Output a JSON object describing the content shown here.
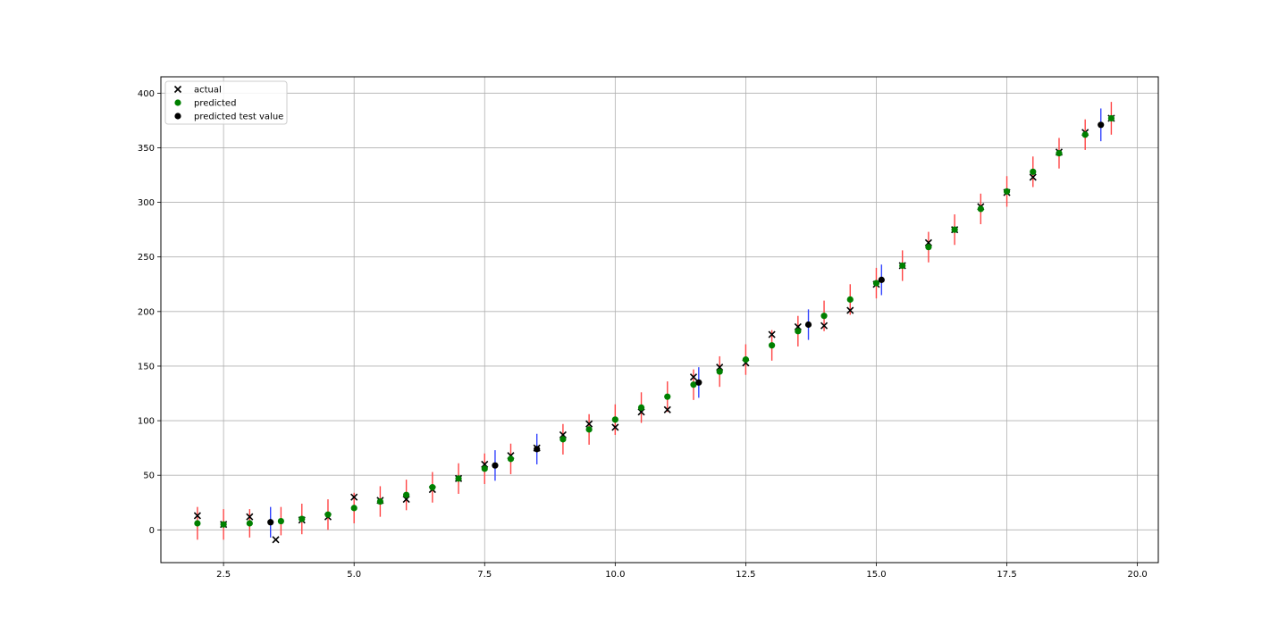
{
  "chart_data": {
    "type": "scatter",
    "title": "",
    "xlabel": "",
    "ylabel": "",
    "xlim": [
      1.3,
      20.4
    ],
    "ylim": [
      -30,
      415
    ],
    "x_ticks": [
      2.5,
      5.0,
      7.5,
      10.0,
      12.5,
      15.0,
      17.5,
      20.0
    ],
    "x_tick_labels": [
      "2.5",
      "5.0",
      "7.5",
      "10.0",
      "12.5",
      "15.0",
      "17.5",
      "20.0"
    ],
    "y_ticks": [
      0,
      50,
      100,
      150,
      200,
      250,
      300,
      350,
      400
    ],
    "y_tick_labels": [
      "0",
      "50",
      "100",
      "150",
      "200",
      "250",
      "300",
      "350",
      "400"
    ],
    "grid": true,
    "legend_position": "top-left",
    "series": [
      {
        "name": "actual",
        "marker": "x",
        "color": "#000000",
        "x": [
          2.0,
          2.5,
          3.0,
          3.5,
          4.0,
          4.5,
          5.0,
          5.5,
          6.0,
          6.5,
          7.0,
          7.5,
          8.0,
          8.5,
          9.0,
          9.5,
          10.0,
          10.5,
          11.0,
          11.5,
          12.0,
          12.5,
          13.0,
          13.5,
          14.0,
          14.5,
          15.0,
          15.5,
          16.0,
          16.5,
          17.0,
          17.5,
          18.0,
          18.5,
          19.0,
          19.5
        ],
        "y": [
          13,
          5,
          12,
          -9,
          9,
          12,
          30,
          27,
          28,
          37,
          47,
          60,
          68,
          75,
          87,
          97,
          94,
          108,
          110,
          140,
          149,
          153,
          179,
          186,
          187,
          201,
          225,
          242,
          263,
          275,
          296,
          309,
          323,
          346,
          364,
          377
        ]
      },
      {
        "name": "predicted",
        "marker": "o",
        "color": "#008000",
        "x": [
          2.0,
          2.5,
          3.0,
          3.6,
          4.0,
          4.5,
          5.0,
          5.5,
          6.0,
          6.5,
          7.0,
          7.5,
          8.0,
          9.0,
          9.5,
          10.0,
          10.5,
          11.0,
          11.5,
          12.0,
          12.5,
          13.0,
          13.5,
          14.0,
          14.5,
          15.0,
          15.5,
          16.0,
          16.5,
          17.0,
          17.5,
          18.0,
          18.5,
          19.0,
          19.5
        ],
        "y": [
          6,
          5,
          6,
          8,
          10,
          14,
          20,
          26,
          32,
          39,
          47,
          56,
          65,
          83,
          92,
          101,
          112,
          122,
          133,
          145,
          156,
          169,
          182,
          196,
          211,
          226,
          242,
          259,
          275,
          294,
          310,
          328,
          345,
          362,
          377
        ],
        "err_color": "#ff4444",
        "err": [
          15,
          14,
          13,
          13,
          14,
          14,
          14,
          14,
          14,
          14,
          14,
          14,
          14,
          14,
          14,
          14,
          14,
          14,
          14,
          14,
          14,
          14,
          14,
          14,
          14,
          14,
          14,
          14,
          14,
          14,
          14,
          14,
          14,
          14,
          15
        ]
      },
      {
        "name": "predicted test value",
        "marker": "o",
        "color": "#000000",
        "x": [
          3.4,
          7.7,
          8.5,
          11.6,
          13.7,
          15.1,
          19.3
        ],
        "y": [
          7,
          59,
          74,
          135,
          188,
          229,
          371
        ],
        "err_color": "#3344ff",
        "err": [
          14,
          14,
          14,
          14,
          14,
          14,
          15
        ]
      }
    ]
  }
}
